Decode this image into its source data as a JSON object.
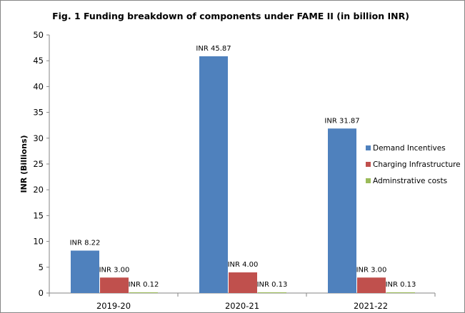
{
  "chart_data": {
    "type": "bar",
    "title": "Fig. 1 Funding breakdown of components under FAME II (in billion INR)",
    "xlabel": "",
    "ylabel": "INR (Billions)",
    "categories": [
      "2019-20",
      "2020-21",
      "2021-22"
    ],
    "ylim": [
      0,
      50
    ],
    "yticks": [
      0,
      5,
      10,
      15,
      20,
      25,
      30,
      35,
      40,
      45,
      50
    ],
    "grid": false,
    "legend_position": "right",
    "series": [
      {
        "name": "Demand Incentives",
        "color": "#4F81BD",
        "values": [
          8.22,
          45.87,
          31.87
        ],
        "labels": [
          "INR 8.22",
          "INR 45.87",
          "INR 31.87"
        ]
      },
      {
        "name": "Charging Infrastructure",
        "color": "#C0504D",
        "values": [
          3.0,
          4.0,
          3.0
        ],
        "labels": [
          "INR 3.00",
          "INR 4.00",
          "INR 3.00"
        ]
      },
      {
        "name": "Adminstrative costs",
        "color": "#9BBB59",
        "values": [
          0.12,
          0.13,
          0.13
        ],
        "labels": [
          "INR 0.12",
          "INR 0.13",
          "INR 0.13"
        ]
      }
    ]
  }
}
